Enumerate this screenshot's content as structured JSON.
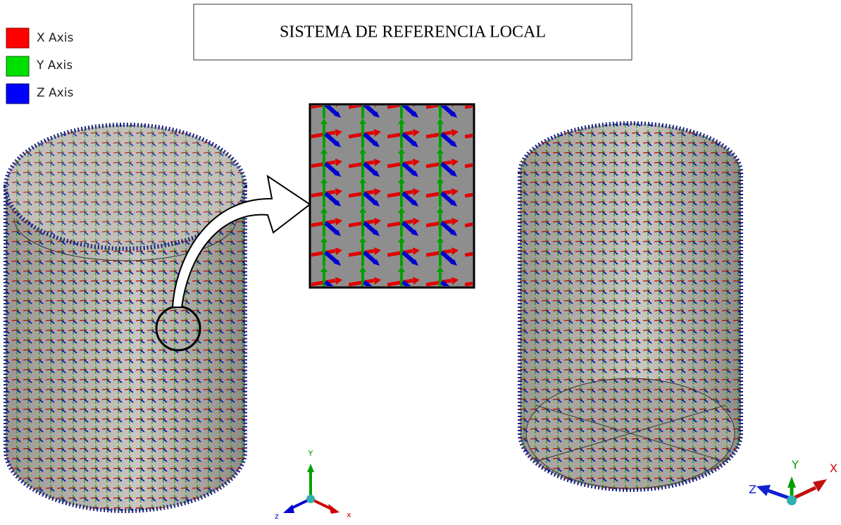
{
  "title": "SISTEMA DE REFERENCIA LOCAL",
  "legend": {
    "items": [
      {
        "label": "X Axis",
        "color": "#ff0000"
      },
      {
        "label": "Y Axis",
        "color": "#00e000"
      },
      {
        "label": "Z Axis",
        "color": "#0000ff"
      }
    ]
  },
  "triads": [
    {
      "y": "Y",
      "x": "x",
      "z": "z"
    },
    {
      "y": "Y",
      "x": "X",
      "z": "Z"
    }
  ]
}
